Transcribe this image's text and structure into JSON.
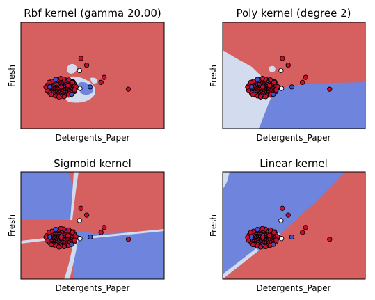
{
  "chart_data": [
    {
      "type": "scatter",
      "title": "Rbf kernel (gamma 20.00)",
      "xlabel": "Detergents_Paper",
      "ylabel": "Fresh",
      "xlim": [
        -0.6,
        2.6
      ],
      "ylim": [
        -0.8,
        2.0
      ],
      "background_class": "red",
      "region_colors": {
        "red": "#d65f5f",
        "light": "#d3dcef",
        "blue": "#6f84dc"
      },
      "points": [
        {
          "x": 0.74,
          "y": 1.05,
          "class": "red"
        },
        {
          "x": 0.87,
          "y": 0.87,
          "class": "red"
        },
        {
          "x": 0.71,
          "y": 0.73,
          "class": "light"
        },
        {
          "x": 1.26,
          "y": 0.55,
          "class": "red"
        },
        {
          "x": 1.19,
          "y": 0.42,
          "class": "red"
        },
        {
          "x": 1.8,
          "y": 0.24,
          "class": "red"
        },
        {
          "x": 0.72,
          "y": 0.26,
          "class": "light"
        },
        {
          "x": 0.45,
          "y": 0.34,
          "class": "red"
        },
        {
          "x": 0.55,
          "y": 0.42,
          "class": "red"
        },
        {
          "x": 0.3,
          "y": 0.3,
          "class": "red"
        },
        {
          "x": 0.05,
          "y": 0.3,
          "class": "blue"
        },
        {
          "x": 0.95,
          "y": 0.3,
          "class": "blue"
        },
        {
          "x": 0.6,
          "y": 0.22,
          "class": "red"
        }
      ]
    },
    {
      "type": "scatter",
      "title": "Poly kernel (degree 2)",
      "xlabel": "Detergents_Paper",
      "ylabel": "Fresh",
      "xlim": [
        -0.6,
        2.6
      ],
      "ylim": [
        -0.8,
        2.0
      ],
      "background_class": "red",
      "region_colors": {
        "red": "#d65f5f",
        "light": "#d3dcef",
        "blue": "#6f84dc"
      },
      "points": [
        {
          "x": 0.74,
          "y": 1.05,
          "class": "red"
        },
        {
          "x": 0.87,
          "y": 0.87,
          "class": "red"
        },
        {
          "x": 0.71,
          "y": 0.73,
          "class": "light"
        },
        {
          "x": 1.26,
          "y": 0.55,
          "class": "red"
        },
        {
          "x": 1.19,
          "y": 0.42,
          "class": "red"
        },
        {
          "x": 1.8,
          "y": 0.24,
          "class": "red"
        },
        {
          "x": 0.72,
          "y": 0.26,
          "class": "light"
        },
        {
          "x": 0.45,
          "y": 0.34,
          "class": "red"
        },
        {
          "x": 0.55,
          "y": 0.42,
          "class": "red"
        },
        {
          "x": 0.3,
          "y": 0.3,
          "class": "red"
        },
        {
          "x": 0.05,
          "y": 0.3,
          "class": "blue"
        },
        {
          "x": 0.95,
          "y": 0.3,
          "class": "blue"
        },
        {
          "x": 0.6,
          "y": 0.22,
          "class": "red"
        }
      ]
    },
    {
      "type": "scatter",
      "title": "Sigmoid kernel",
      "xlabel": "Detergents_Paper",
      "ylabel": "Fresh",
      "xlim": [
        -0.6,
        2.6
      ],
      "ylim": [
        -0.8,
        2.0
      ],
      "background_class": "red",
      "region_colors": {
        "red": "#d65f5f",
        "light": "#d3dcef",
        "blue": "#6f84dc"
      },
      "points": [
        {
          "x": 0.74,
          "y": 1.05,
          "class": "red"
        },
        {
          "x": 0.87,
          "y": 0.87,
          "class": "red"
        },
        {
          "x": 0.71,
          "y": 0.73,
          "class": "light"
        },
        {
          "x": 1.26,
          "y": 0.55,
          "class": "red"
        },
        {
          "x": 1.19,
          "y": 0.42,
          "class": "red"
        },
        {
          "x": 1.8,
          "y": 0.24,
          "class": "red"
        },
        {
          "x": 0.72,
          "y": 0.26,
          "class": "light"
        },
        {
          "x": 0.45,
          "y": 0.34,
          "class": "red"
        },
        {
          "x": 0.55,
          "y": 0.42,
          "class": "red"
        },
        {
          "x": 0.3,
          "y": 0.3,
          "class": "red"
        },
        {
          "x": 0.05,
          "y": 0.3,
          "class": "blue"
        },
        {
          "x": 0.95,
          "y": 0.3,
          "class": "blue"
        },
        {
          "x": 0.6,
          "y": 0.22,
          "class": "red"
        }
      ]
    },
    {
      "type": "scatter",
      "title": "Linear kernel",
      "xlabel": "Detergents_Paper",
      "ylabel": "Fresh",
      "xlim": [
        -0.6,
        2.6
      ],
      "ylim": [
        -0.8,
        2.0
      ],
      "background_class": "red",
      "region_colors": {
        "red": "#d65f5f",
        "light": "#d3dcef",
        "blue": "#6f84dc"
      },
      "points": [
        {
          "x": 0.74,
          "y": 1.05,
          "class": "red"
        },
        {
          "x": 0.87,
          "y": 0.87,
          "class": "red"
        },
        {
          "x": 0.71,
          "y": 0.73,
          "class": "light"
        },
        {
          "x": 1.26,
          "y": 0.55,
          "class": "red"
        },
        {
          "x": 1.19,
          "y": 0.42,
          "class": "red"
        },
        {
          "x": 1.8,
          "y": 0.24,
          "class": "red"
        },
        {
          "x": 0.72,
          "y": 0.26,
          "class": "light"
        },
        {
          "x": 0.45,
          "y": 0.34,
          "class": "red"
        },
        {
          "x": 0.55,
          "y": 0.42,
          "class": "red"
        },
        {
          "x": 0.3,
          "y": 0.3,
          "class": "red"
        },
        {
          "x": 0.05,
          "y": 0.3,
          "class": "blue"
        },
        {
          "x": 0.95,
          "y": 0.3,
          "class": "blue"
        },
        {
          "x": 0.6,
          "y": 0.22,
          "class": "red"
        }
      ]
    }
  ]
}
